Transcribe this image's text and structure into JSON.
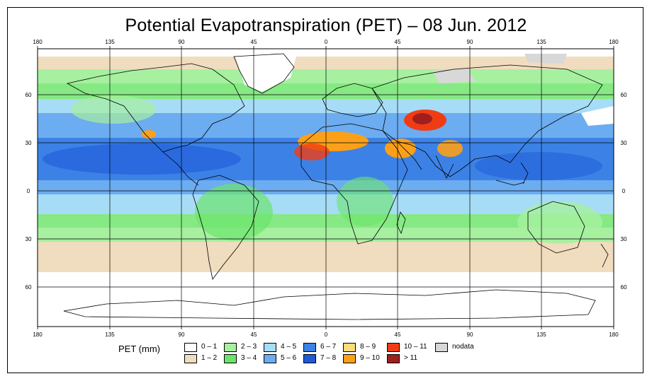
{
  "title": "Potential Evapotranspiration (PET) – 08 Jun. 2012",
  "axes": {
    "lon_ticks": [
      "180",
      "135",
      "90",
      "45",
      "0",
      "45",
      "90",
      "135",
      "180"
    ],
    "lat_ticks_left": [
      "60",
      "30",
      "0",
      "30",
      "60"
    ],
    "lat_ticks_right": [
      "60",
      "30",
      "0",
      "30",
      "60"
    ]
  },
  "legend": {
    "title": "PET (mm)",
    "items": [
      {
        "label": "0 – 1",
        "color": "#ffffff"
      },
      {
        "label": "1 – 2",
        "color": "#f0dcbe"
      },
      {
        "label": "2 – 3",
        "color": "#a6f0a0"
      },
      {
        "label": "3 – 4",
        "color": "#6ce46c"
      },
      {
        "label": "4 – 5",
        "color": "#a6dcf6"
      },
      {
        "label": "5 – 6",
        "color": "#6cacf0"
      },
      {
        "label": "6 – 7",
        "color": "#3c82e6"
      },
      {
        "label": "7 – 8",
        "color": "#1e5ad8"
      },
      {
        "label": "8 – 9",
        "color": "#fbdc7a"
      },
      {
        "label": "9 – 10",
        "color": "#fba018"
      },
      {
        "label": "10 – 11",
        "color": "#f03c14"
      },
      {
        "label": "> 11",
        "color": "#a01e1e"
      },
      {
        "label": "nodata",
        "color": "#d8d8d8"
      }
    ]
  }
}
